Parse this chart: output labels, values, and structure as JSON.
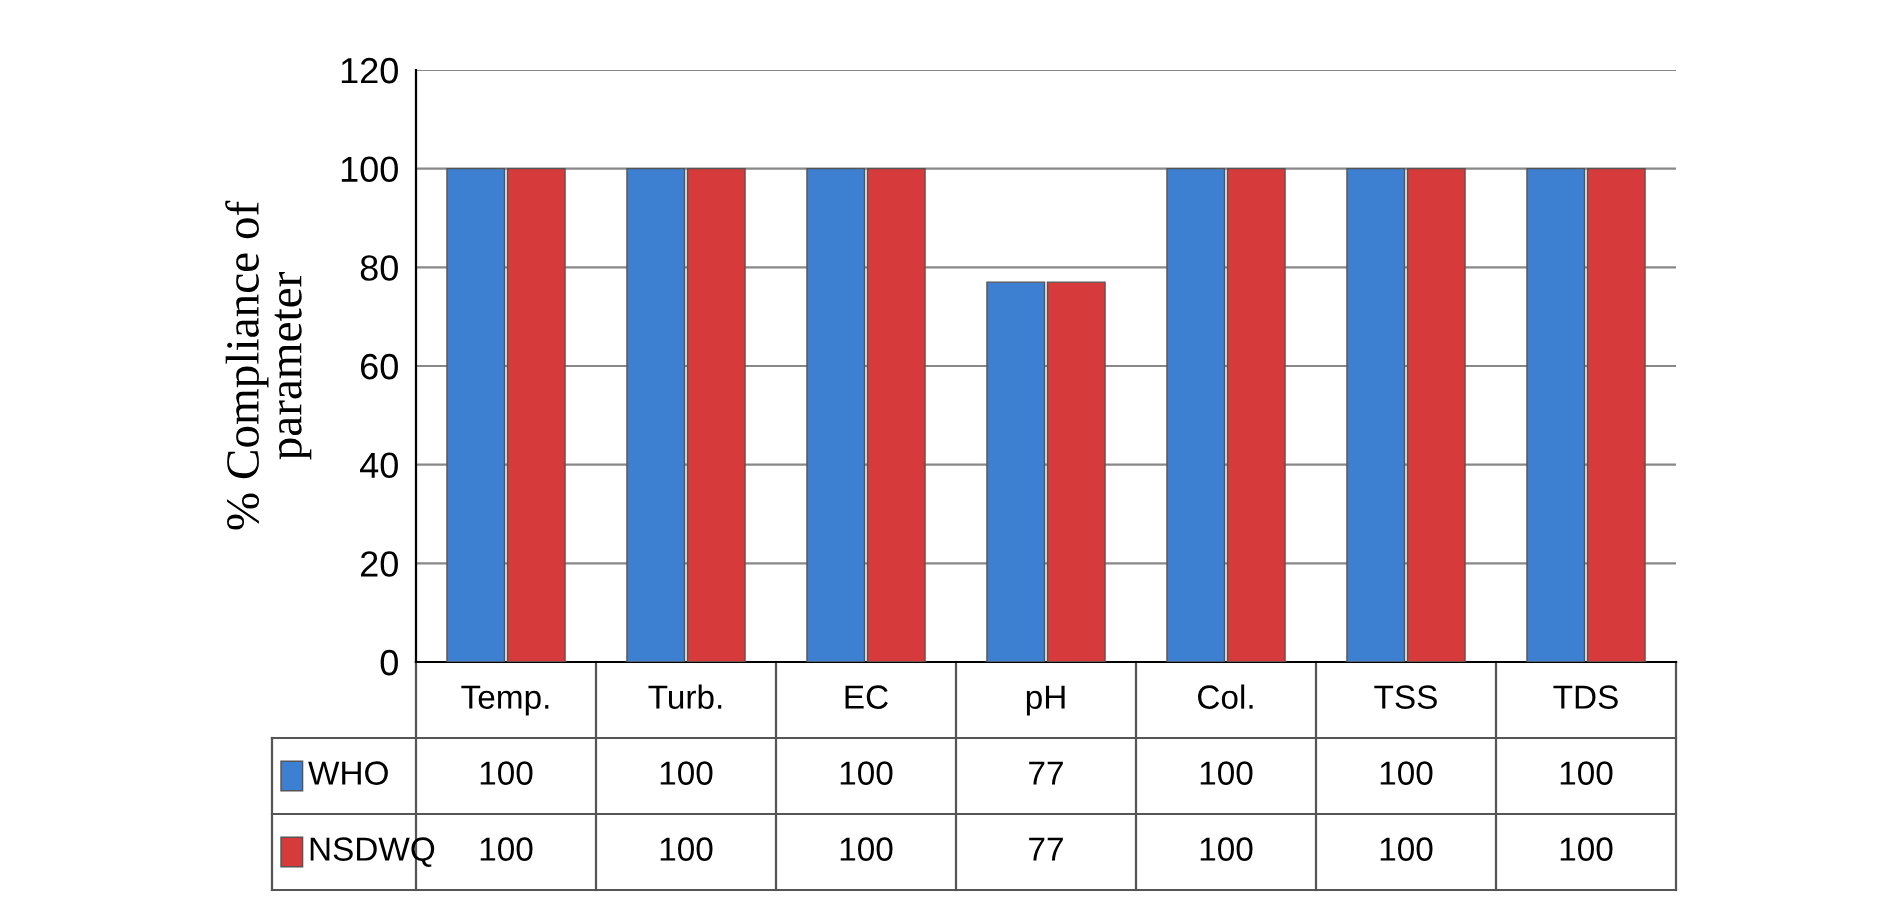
{
  "chart_data": {
    "type": "bar",
    "ylabel": "% Compliance of\nparameter",
    "categories": [
      "Temp.",
      "Turb.",
      "EC",
      "pH",
      "Col.",
      "TSS",
      "TDS"
    ],
    "series": [
      {
        "name": "WHO",
        "color": "#3d7fd0",
        "values": [
          100,
          100,
          100,
          77,
          100,
          100,
          100
        ]
      },
      {
        "name": "NSDWQ",
        "color": "#d63a3a",
        "values": [
          100,
          100,
          100,
          77,
          100,
          100,
          100
        ]
      }
    ],
    "ylim": [
      0,
      120
    ],
    "yticks": [
      0,
      20,
      40,
      60,
      80,
      100,
      120
    ],
    "grid": "y",
    "legend": "bottom",
    "data_labels": true
  }
}
